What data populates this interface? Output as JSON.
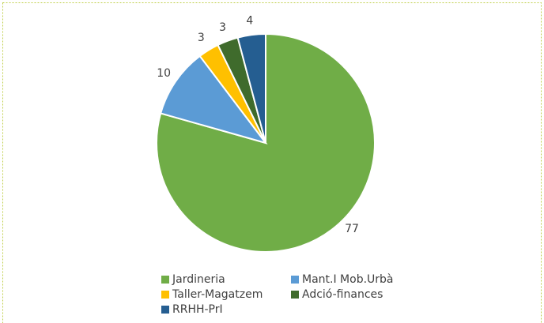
{
  "chart_data": {
    "type": "pie",
    "categories": [
      "Jardineria",
      "Mant.I Mob.Urbà",
      "Taller-Magatzem",
      "Adció-finances",
      "RRHH-PrI"
    ],
    "values": [
      77,
      10,
      3,
      3,
      4
    ],
    "colors": [
      "#70ad47",
      "#5b9bd5",
      "#ffc000",
      "#3f6b2c",
      "#255e91"
    ],
    "legend": "bottom"
  }
}
